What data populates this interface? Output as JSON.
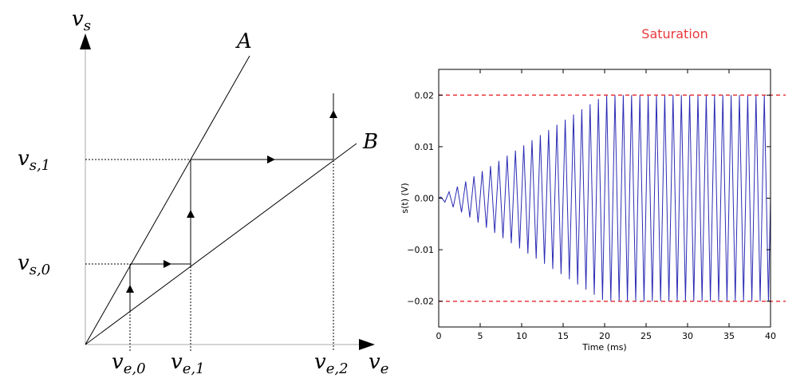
{
  "diagram": {
    "axis_y": {
      "base": "v",
      "sub": "s"
    },
    "axis_x": {
      "base": "v",
      "sub": "e"
    },
    "line_a": "A",
    "line_b": "B",
    "levels": [
      {
        "base": "v",
        "sub": "s,1"
      },
      {
        "base": "v",
        "sub": "s,0"
      },
      {
        "base": "v",
        "sub": "e,0"
      },
      {
        "base": "v",
        "sub": "e,1"
      },
      {
        "base": "v",
        "sub": "e,2"
      }
    ]
  },
  "chart_data": {
    "type": "line",
    "title": "Saturation",
    "title_color": "#e8383d",
    "xlabel": "Time (ms)",
    "ylabel": "s(t) (V)",
    "xlim": [
      0,
      40
    ],
    "ylim": [
      -0.025,
      0.025
    ],
    "xticks": [
      0,
      5,
      10,
      15,
      20,
      25,
      30,
      35,
      40
    ],
    "yticks": [
      0.02,
      0.01,
      {
        "value": 0,
        "label": "0.00"
      },
      {
        "value": -0.01,
        "label": "−0.01"
      },
      {
        "value": -0.02,
        "label": "−0.02"
      }
    ],
    "x": [
      0,
      0.25,
      0.75,
      1.25,
      1.75,
      2.25,
      2.75,
      3.25,
      3.75,
      4.25,
      4.75,
      5.25,
      5.75,
      6.25,
      6.75,
      7.25,
      7.75,
      8.25,
      8.75,
      9.25,
      9.75,
      10.25,
      10.75,
      11.25,
      11.75,
      12.25,
      12.75,
      13.25,
      13.75,
      14.25,
      14.75,
      15.25,
      15.75,
      16.25,
      16.75,
      17.25,
      17.75,
      18.25,
      18.75,
      19.25,
      19.75,
      20.25,
      20.75,
      21.25,
      21.75,
      22.25,
      22.75,
      23.25,
      23.75,
      24.25,
      24.75,
      25.25,
      25.75,
      26.25,
      26.75,
      27.25,
      27.75,
      28.25,
      28.75,
      29.25,
      29.75,
      30.25,
      30.75,
      31.25,
      31.75,
      32.25,
      32.75,
      33.25,
      33.75,
      34.25,
      34.75,
      35.25,
      35.75,
      36.25,
      36.75,
      37.25,
      37.75,
      38.25,
      38.75,
      39.25,
      39.75,
      40
    ],
    "series": [
      {
        "name": "s(t)",
        "color": "#2b2bb5",
        "values": [
          0,
          0.00025,
          -0.00075,
          0.00125,
          -0.00175,
          0.00225,
          -0.00275,
          0.00325,
          -0.00375,
          0.00425,
          -0.00475,
          0.00525,
          -0.00575,
          0.00625,
          -0.00675,
          0.00725,
          -0.00775,
          0.00825,
          -0.00875,
          0.00925,
          -0.00975,
          0.01025,
          -0.01075,
          0.01125,
          -0.01175,
          0.01225,
          -0.01275,
          0.01325,
          -0.01375,
          0.01425,
          -0.01475,
          0.01525,
          -0.01575,
          0.01625,
          -0.01675,
          0.01725,
          -0.01775,
          0.01825,
          -0.01875,
          0.01925,
          -0.01975,
          0.02,
          -0.02,
          0.02,
          -0.02,
          0.02,
          -0.02,
          0.02,
          -0.02,
          0.02,
          -0.02,
          0.02,
          -0.02,
          0.02,
          -0.02,
          0.02,
          -0.02,
          0.02,
          -0.02,
          0.02,
          -0.02,
          0.02,
          -0.02,
          0.02,
          -0.02,
          0.02,
          -0.02,
          0.02,
          -0.02,
          0.02,
          -0.02,
          0.02,
          -0.02,
          0.02,
          -0.02,
          0.02,
          -0.02,
          0.02,
          -0.02,
          0.02,
          -0.02,
          0
        ]
      }
    ],
    "hlines": {
      "values": [
        0.02,
        -0.02
      ],
      "color": "#e8383d",
      "dashed": true
    }
  }
}
